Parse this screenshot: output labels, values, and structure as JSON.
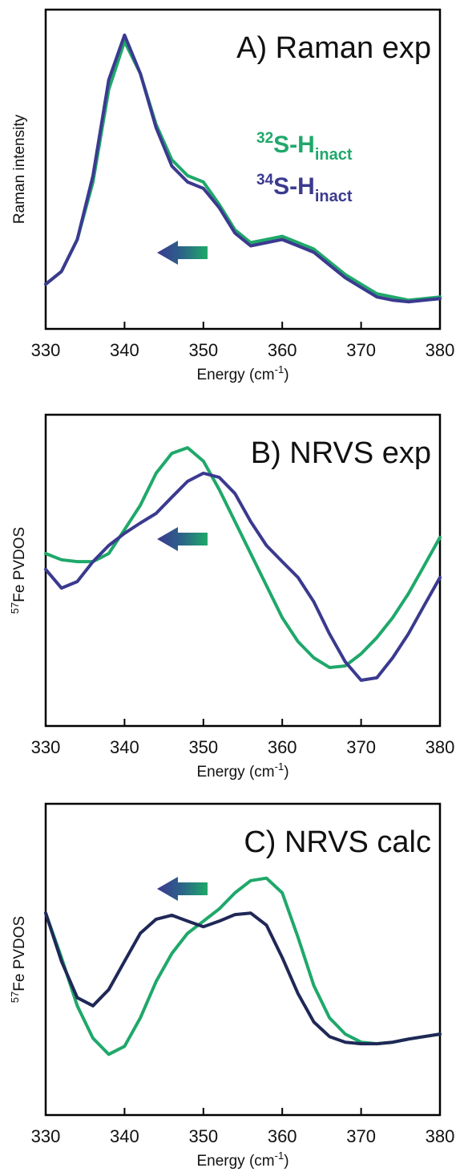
{
  "chart_data": [
    {
      "type": "line",
      "title": "A) Raman exp",
      "xlabel": "Energy (cm",
      "xlabel_sup": "-1",
      "xlabel_end": ")",
      "ylabel": "Raman intensity",
      "x": [
        330,
        332,
        334,
        336,
        338,
        340,
        342,
        344,
        346,
        348,
        350,
        352,
        354,
        356,
        358,
        360,
        362,
        364,
        366,
        368,
        370,
        372,
        374,
        376,
        378,
        380
      ],
      "xlim": [
        330,
        380
      ],
      "xticks": [
        330,
        340,
        350,
        360,
        370,
        380
      ],
      "ylim": [
        0,
        100
      ],
      "legend": true,
      "series": [
        {
          "isotope": "32",
          "name": "S-H",
          "subscript": "inact",
          "color": "#1fa86a",
          "values": [
            14,
            18,
            28,
            46,
            75,
            90,
            80,
            64,
            53,
            48,
            46,
            39,
            31,
            27,
            28,
            29,
            27,
            25,
            21,
            17,
            14,
            11,
            10,
            9,
            9.5,
            10
          ]
        },
        {
          "isotope": "34",
          "name": "S-H",
          "subscript": "inact",
          "color": "#3b3a8f",
          "values": [
            14,
            18,
            28,
            48,
            78,
            92,
            80,
            63,
            51,
            46,
            44,
            38,
            30,
            26,
            27,
            28,
            26,
            24,
            20,
            16,
            13,
            10,
            9,
            8.5,
            9,
            9.5
          ]
        }
      ]
    },
    {
      "type": "line",
      "title": "B) NRVS exp",
      "xlabel": "Energy (cm",
      "xlabel_sup": "-1",
      "xlabel_end": ")",
      "ylabel_sup": "57",
      "ylabel": "Fe PVDOS",
      "x": [
        330,
        332,
        334,
        336,
        338,
        340,
        342,
        344,
        346,
        348,
        350,
        352,
        354,
        356,
        358,
        360,
        362,
        364,
        366,
        368,
        370,
        372,
        374,
        376,
        378,
        380
      ],
      "xlim": [
        330,
        380
      ],
      "xticks": [
        330,
        340,
        350,
        360,
        370,
        380
      ],
      "ylim": [
        0,
        100
      ],
      "series": [
        {
          "color": "#1fa86a",
          "values": [
            55.4,
            53.4,
            52.8,
            52.8,
            55.4,
            63.1,
            70.9,
            81.2,
            87.6,
            89.4,
            85.1,
            76,
            65.7,
            55.4,
            45.1,
            34.8,
            27.1,
            21.9,
            18.8,
            19.3,
            23.2,
            28.4,
            34.8,
            42.5,
            51.5,
            60.6
          ]
        },
        {
          "color": "#3b3a8f",
          "values": [
            50.3,
            44.3,
            46.4,
            52.8,
            58,
            61.9,
            65.2,
            68.3,
            73.5,
            78.6,
            81.2,
            79.9,
            74.7,
            65.7,
            58,
            52.8,
            47.7,
            39.9,
            29.6,
            20.6,
            14.7,
            15.5,
            21.9,
            29.6,
            38.7,
            47.7
          ]
        }
      ]
    },
    {
      "type": "line",
      "title": "C) NRVS calc",
      "xlabel": "Energy (cm",
      "xlabel_sup": "-1",
      "xlabel_end": ")",
      "ylabel_sup": "57",
      "ylabel": "Fe PVDOS",
      "x": [
        330,
        332,
        334,
        336,
        338,
        340,
        342,
        344,
        346,
        348,
        350,
        352,
        354,
        356,
        358,
        360,
        362,
        364,
        366,
        368,
        370,
        372,
        374,
        376,
        378,
        380
      ],
      "xlim": [
        330,
        380
      ],
      "xticks": [
        330,
        340,
        350,
        360,
        370,
        380
      ],
      "ylim": [
        0,
        100
      ],
      "series": [
        {
          "color": "#1fa86a",
          "values": [
            64.9,
            50.6,
            35.1,
            24.7,
            19.5,
            22.1,
            31.2,
            42.9,
            51.9,
            58.4,
            62.3,
            66.2,
            71.4,
            75.3,
            76.1,
            71.4,
            57.1,
            41.6,
            31.2,
            26,
            23.4,
            22.9,
            23.4,
            24.4,
            25.2,
            26
          ]
        },
        {
          "color": "#1f2857",
          "values": [
            64.9,
            49.4,
            37.7,
            35.1,
            40.3,
            49.4,
            58.4,
            62.9,
            64.2,
            62.3,
            60.5,
            62.3,
            64.4,
            64.9,
            61,
            50.6,
            39,
            29.9,
            25.2,
            23.4,
            22.9,
            22.9,
            23.4,
            24.4,
            25.2,
            26
          ]
        }
      ]
    }
  ]
}
